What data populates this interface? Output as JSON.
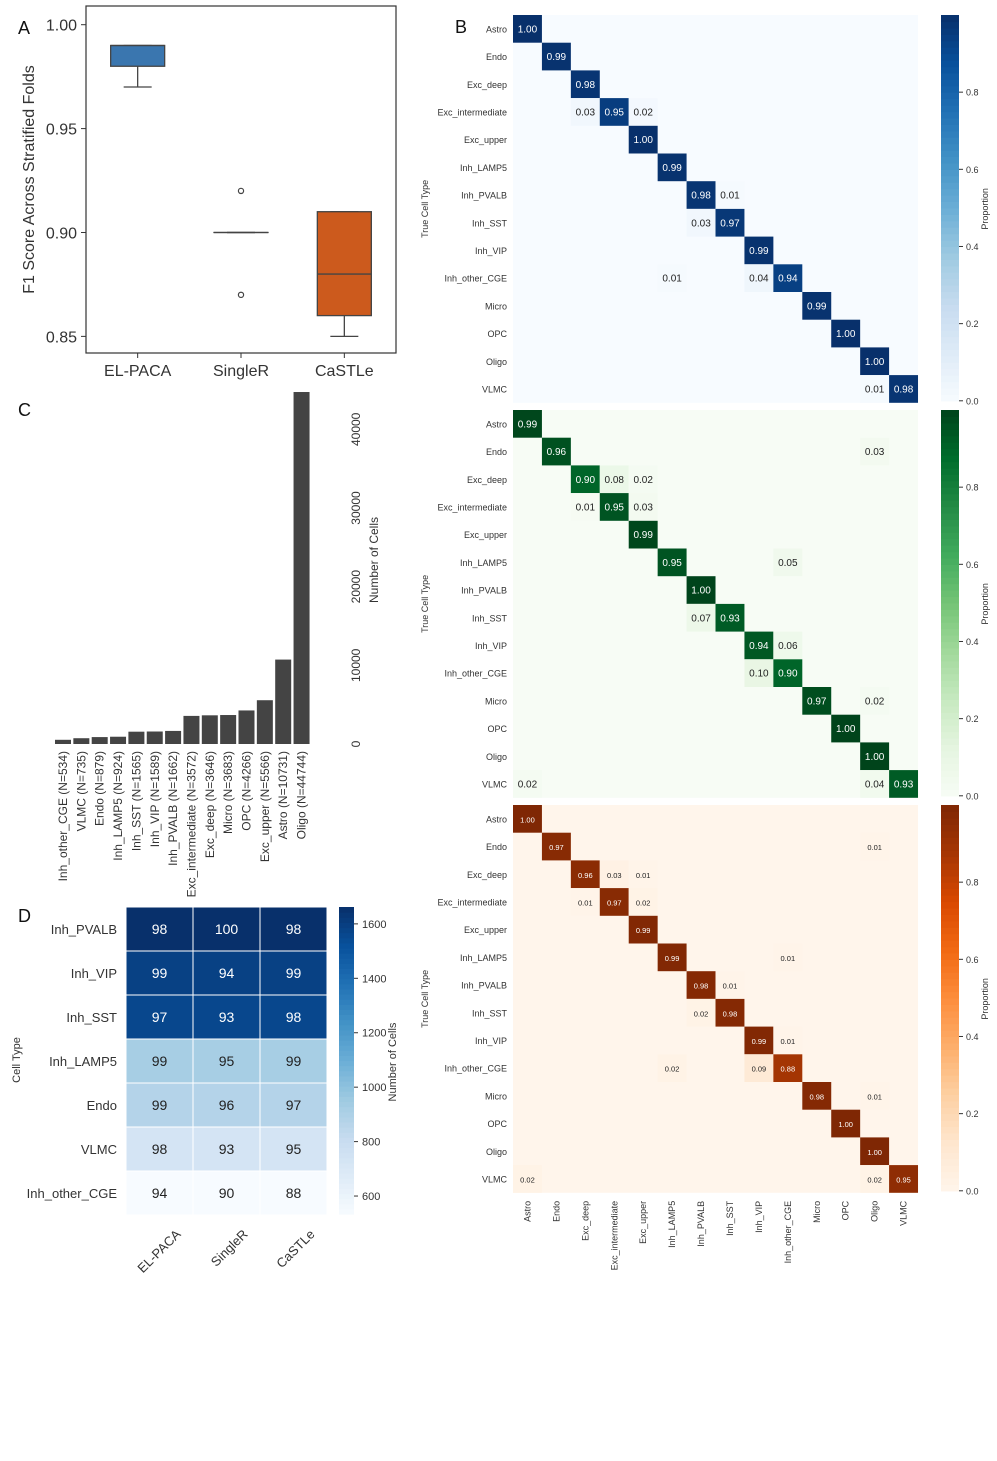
{
  "chart_data": [
    {
      "panel": "A",
      "type": "box",
      "ylabel": "F1 Score Across Stratified Folds",
      "categories": [
        "EL-PACA",
        "SingleR",
        "CaSTLe"
      ],
      "ylim": [
        0.842,
        1.009
      ],
      "yticks": [
        0.85,
        0.9,
        0.95,
        1.0
      ],
      "ytick_labels": [
        "0.85",
        "0.90",
        "0.95",
        "1.00"
      ],
      "boxes": [
        {
          "name": "EL-PACA",
          "color": "#3a76af",
          "whislo": 0.97,
          "q1": 0.98,
          "med": 0.99,
          "q3": 0.99,
          "whishi": 0.99,
          "fliers": []
        },
        {
          "name": "SingleR",
          "color": "#3a76af",
          "whislo": 0.9,
          "q1": 0.9,
          "med": 0.9,
          "q3": 0.9,
          "whishi": 0.9,
          "fliers": [
            0.92,
            0.87
          ]
        },
        {
          "name": "CaSTLe",
          "color": "#cc5a1d",
          "whislo": 0.85,
          "q1": 0.86,
          "med": 0.88,
          "q3": 0.91,
          "whishi": 0.91,
          "fliers": []
        }
      ]
    },
    {
      "panel": "C",
      "type": "bar",
      "ylabel": "Number of Cells",
      "categories": [
        "Inh_other_CGE (N=534)",
        "VLMC (N=735)",
        "Endo (N=879)",
        "Inh_LAMP5 (N=924)",
        "Inh_SST (N=1565)",
        "Inh_VIP (N=1589)",
        "Inh_PVALB (N=1662)",
        "Exc_intermediate (N=3572)",
        "Exc_deep (N=3646)",
        "Micro (N=3683)",
        "OPC (N=4266)",
        "Exc_upper (N=5566)",
        "Astro (N=10731)",
        "Oligo (N=44744)"
      ],
      "values": [
        534,
        735,
        879,
        924,
        1565,
        1589,
        1662,
        3572,
        3646,
        3683,
        4266,
        5566,
        10731,
        44744
      ],
      "ylim": [
        0,
        45000
      ],
      "yticks": [
        0,
        10000,
        20000,
        30000,
        40000
      ],
      "ytick_labels": [
        "0",
        "10000",
        "20000",
        "30000",
        "40000"
      ],
      "color": "#444444"
    },
    {
      "panel": "D",
      "type": "heatmap",
      "ylabel": "Cell Type",
      "colorbar_label": "Number of Cells",
      "colorbar_ticks": [
        600,
        800,
        1000,
        1200,
        1400,
        1600
      ],
      "colorbar_range": [
        534,
        1662
      ],
      "rows": [
        "Inh_PVALB",
        "Inh_VIP",
        "Inh_SST",
        "Inh_LAMP5",
        "Endo",
        "VLMC",
        "Inh_other_CGE"
      ],
      "row_counts": [
        1662,
        1589,
        1565,
        924,
        879,
        735,
        534
      ],
      "columns": [
        "EL-PACA",
        "SingleR",
        "CaSTLe"
      ],
      "values": [
        [
          98,
          100,
          98
        ],
        [
          99,
          94,
          99
        ],
        [
          97,
          93,
          98
        ],
        [
          99,
          95,
          99
        ],
        [
          99,
          96,
          97
        ],
        [
          98,
          93,
          95
        ],
        [
          94,
          90,
          88
        ]
      ]
    },
    {
      "panel": "B",
      "type": "heatmap",
      "ylabel": "True Cell Type",
      "colorbar_label": "Proportion",
      "colorbar_ticks": [
        0.0,
        0.2,
        0.4,
        0.6,
        0.8
      ],
      "labels": [
        "Astro",
        "Endo",
        "Exc_deep",
        "Exc_intermediate",
        "Exc_upper",
        "Inh_LAMP5",
        "Inh_PVALB",
        "Inh_SST",
        "Inh_VIP",
        "Inh_other_CGE",
        "Micro",
        "OPC",
        "Oligo",
        "VLMC"
      ],
      "matrices": [
        {
          "name": "blue",
          "cmap_low": "#f7fbff",
          "cmap_high": "#08306b",
          "cells": [
            [
              0,
              0,
              1.0
            ],
            [
              1,
              1,
              0.99
            ],
            [
              2,
              2,
              0.98
            ],
            [
              3,
              2,
              0.03
            ],
            [
              3,
              3,
              0.95
            ],
            [
              3,
              4,
              0.02
            ],
            [
              4,
              4,
              1.0
            ],
            [
              5,
              5,
              0.99
            ],
            [
              6,
              6,
              0.98
            ],
            [
              6,
              7,
              0.01
            ],
            [
              7,
              6,
              0.03
            ],
            [
              7,
              7,
              0.97
            ],
            [
              8,
              8,
              0.99
            ],
            [
              9,
              5,
              0.01
            ],
            [
              9,
              8,
              0.04
            ],
            [
              9,
              9,
              0.94
            ],
            [
              10,
              10,
              0.99
            ],
            [
              11,
              11,
              1.0
            ],
            [
              12,
              12,
              1.0
            ],
            [
              13,
              12,
              0.01
            ],
            [
              13,
              13,
              0.98
            ]
          ]
        },
        {
          "name": "green",
          "cmap_low": "#f7fcf5",
          "cmap_high": "#00441b",
          "cells": [
            [
              0,
              0,
              0.99
            ],
            [
              1,
              1,
              0.96
            ],
            [
              1,
              12,
              0.03
            ],
            [
              2,
              2,
              0.9
            ],
            [
              2,
              3,
              0.08
            ],
            [
              2,
              4,
              0.02
            ],
            [
              3,
              2,
              0.01
            ],
            [
              3,
              3,
              0.95
            ],
            [
              3,
              4,
              0.03
            ],
            [
              4,
              4,
              0.99
            ],
            [
              5,
              5,
              0.95
            ],
            [
              5,
              9,
              0.05
            ],
            [
              6,
              6,
              1.0
            ],
            [
              7,
              6,
              0.07
            ],
            [
              7,
              7,
              0.93
            ],
            [
              8,
              8,
              0.94
            ],
            [
              8,
              9,
              0.06
            ],
            [
              9,
              8,
              0.1
            ],
            [
              9,
              9,
              0.9
            ],
            [
              10,
              10,
              0.97
            ],
            [
              10,
              12,
              0.02
            ],
            [
              11,
              11,
              1.0
            ],
            [
              12,
              12,
              1.0
            ],
            [
              13,
              0,
              0.02
            ],
            [
              13,
              12,
              0.04
            ],
            [
              13,
              13,
              0.93
            ]
          ]
        },
        {
          "name": "orange",
          "cmap_low": "#fff5eb",
          "cmap_high": "#7f2704",
          "cells": [
            [
              0,
              0,
              1.0
            ],
            [
              1,
              1,
              0.97
            ],
            [
              1,
              12,
              0.01
            ],
            [
              2,
              2,
              0.96
            ],
            [
              2,
              3,
              0.03
            ],
            [
              2,
              4,
              0.01
            ],
            [
              3,
              2,
              0.01
            ],
            [
              3,
              3,
              0.97
            ],
            [
              3,
              4,
              0.02
            ],
            [
              4,
              4,
              0.99
            ],
            [
              5,
              5,
              0.99
            ],
            [
              5,
              9,
              0.01
            ],
            [
              6,
              6,
              0.98
            ],
            [
              6,
              7,
              0.01
            ],
            [
              7,
              6,
              0.02
            ],
            [
              7,
              7,
              0.98
            ],
            [
              8,
              8,
              0.99
            ],
            [
              8,
              9,
              0.01
            ],
            [
              9,
              5,
              0.02
            ],
            [
              9,
              8,
              0.09
            ],
            [
              9,
              9,
              0.88
            ],
            [
              10,
              10,
              0.98
            ],
            [
              10,
              12,
              0.01
            ],
            [
              11,
              11,
              1.0
            ],
            [
              12,
              12,
              1.0
            ],
            [
              13,
              0,
              0.02
            ],
            [
              13,
              12,
              0.02
            ],
            [
              13,
              13,
              0.95
            ]
          ]
        }
      ]
    }
  ],
  "panel_labels": {
    "a": "A",
    "b": "B",
    "c": "C",
    "d": "D"
  },
  "colors": {
    "dark_bar": "#444444",
    "box_blue": "#3a76af",
    "box_orange": "#cc5a1d"
  }
}
